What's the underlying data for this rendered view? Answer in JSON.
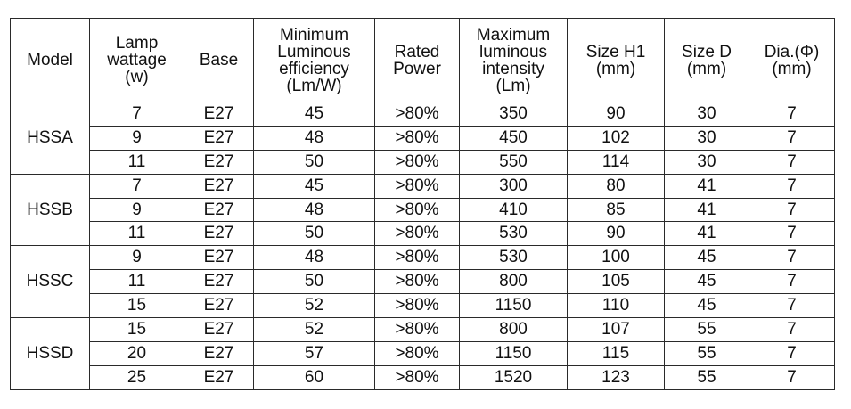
{
  "table": {
    "headers": [
      "Model",
      "Lamp\nwattage\n(w)",
      "Base",
      "Minimum\nLuminous\nefficiency\n(Lm/W)",
      "Rated\nPower",
      "Maximum\nluminous\nintensity\n(Lm)",
      "Size H1\n(mm)",
      "Size D\n(mm)",
      "Dia.(Φ)\n(mm)"
    ],
    "groups": [
      {
        "model": "HSSA",
        "rows": [
          [
            "7",
            "E27",
            "45",
            ">80%",
            "350",
            "90",
            "30",
            "7"
          ],
          [
            "9",
            "E27",
            "48",
            ">80%",
            "450",
            "102",
            "30",
            "7"
          ],
          [
            "11",
            "E27",
            "50",
            ">80%",
            "550",
            "114",
            "30",
            "7"
          ]
        ]
      },
      {
        "model": "HSSB",
        "rows": [
          [
            "7",
            "E27",
            "45",
            ">80%",
            "300",
            "80",
            "41",
            "7"
          ],
          [
            "9",
            "E27",
            "48",
            ">80%",
            "410",
            "85",
            "41",
            "7"
          ],
          [
            "11",
            "E27",
            "50",
            ">80%",
            "530",
            "90",
            "41",
            "7"
          ]
        ]
      },
      {
        "model": "HSSC",
        "rows": [
          [
            "9",
            "E27",
            "48",
            ">80%",
            "530",
            "100",
            "45",
            "7"
          ],
          [
            "11",
            "E27",
            "50",
            ">80%",
            "800",
            "105",
            "45",
            "7"
          ],
          [
            "15",
            "E27",
            "52",
            ">80%",
            "1150",
            "110",
            "45",
            "7"
          ]
        ]
      },
      {
        "model": "HSSD",
        "rows": [
          [
            "15",
            "E27",
            "52",
            ">80%",
            "800",
            "107",
            "55",
            "7"
          ],
          [
            "20",
            "E27",
            "57",
            ">80%",
            "1150",
            "115",
            "55",
            "7"
          ],
          [
            "25",
            "E27",
            "60",
            ">80%",
            "1520",
            "123",
            "55",
            "7"
          ]
        ]
      }
    ]
  }
}
